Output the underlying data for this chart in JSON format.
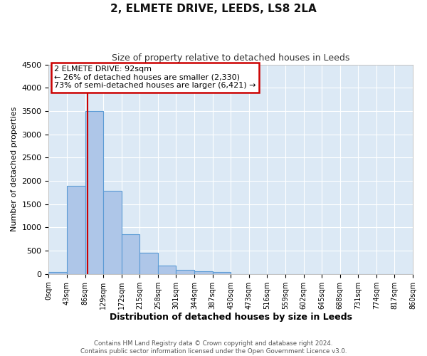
{
  "title": "2, ELMETE DRIVE, LEEDS, LS8 2LA",
  "subtitle": "Size of property relative to detached houses in Leeds",
  "xlabel": "Distribution of detached houses by size in Leeds",
  "ylabel": "Number of detached properties",
  "bar_edges": [
    0,
    43,
    86,
    129,
    172,
    215,
    258,
    301,
    344,
    387,
    430,
    473,
    516,
    559,
    602,
    645,
    688,
    731,
    774,
    817,
    860
  ],
  "bar_heights": [
    40,
    1900,
    3500,
    1780,
    850,
    450,
    175,
    90,
    55,
    40,
    0,
    0,
    0,
    0,
    0,
    0,
    0,
    0,
    0,
    0
  ],
  "bar_color": "#aec6e8",
  "bar_edgecolor": "#5b9bd5",
  "property_size": 92,
  "vline_color": "#cc0000",
  "annotation_box_edgecolor": "#cc0000",
  "annotation_title": "2 ELMETE DRIVE: 92sqm",
  "annotation_line1": "← 26% of detached houses are smaller (2,330)",
  "annotation_line2": "73% of semi-detached houses are larger (6,421) →",
  "ylim": [
    0,
    4500
  ],
  "yticks": [
    0,
    500,
    1000,
    1500,
    2000,
    2500,
    3000,
    3500,
    4000,
    4500
  ],
  "tick_labels": [
    "0sqm",
    "43sqm",
    "86sqm",
    "129sqm",
    "172sqm",
    "215sqm",
    "258sqm",
    "301sqm",
    "344sqm",
    "387sqm",
    "430sqm",
    "473sqm",
    "516sqm",
    "559sqm",
    "602sqm",
    "645sqm",
    "688sqm",
    "731sqm",
    "774sqm",
    "817sqm",
    "860sqm"
  ],
  "footer_line1": "Contains HM Land Registry data © Crown copyright and database right 2024.",
  "footer_line2": "Contains public sector information licensed under the Open Government Licence v3.0.",
  "fig_bg_color": "#ffffff",
  "plot_bg_color": "#dce9f5"
}
